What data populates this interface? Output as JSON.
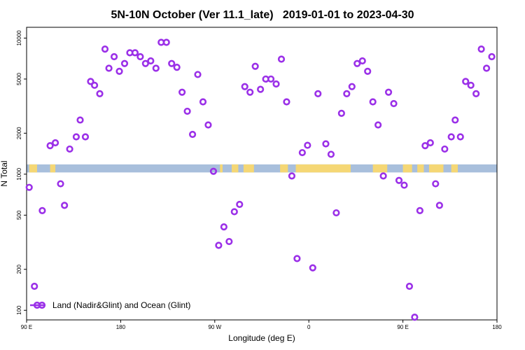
{
  "chart_data": {
    "type": "scatter",
    "title": "5N-10N October (Ver 11.1_late)   2019-01-01 to 2023-04-30",
    "xlabel": "Longitude (deg E)",
    "ylabel": "N Total",
    "y_scale": "log",
    "xlim": [
      90,
      450
    ],
    "ylim": [
      85,
      12000
    ],
    "x_ticks": [
      {
        "value": 90,
        "label": "90 E"
      },
      {
        "value": 162,
        "label": "180"
      },
      {
        "value": 234,
        "label": "90 W"
      },
      {
        "value": 306,
        "label": "0"
      },
      {
        "value": 378,
        "label": "90 E"
      },
      {
        "value": 450,
        "label": "180"
      }
    ],
    "y_ticks": [
      {
        "value": 100,
        "label": "100"
      },
      {
        "value": 200,
        "label": "200"
      },
      {
        "value": 500,
        "label": "500"
      },
      {
        "value": 1000,
        "label": "1000"
      },
      {
        "value": 2000,
        "label": "2000"
      },
      {
        "value": 5000,
        "label": "5000"
      },
      {
        "value": 10000,
        "label": "10000"
      }
    ],
    "grid": false,
    "legend_position": "bottom-left",
    "series": [
      {
        "name": "Land (Nadir&Glint) and Ocean (Glint)",
        "color": "#9b30e8",
        "marker": "open-circle",
        "points": [
          [
            92,
            800
          ],
          [
            96,
            150
          ],
          [
            102,
            540
          ],
          [
            108,
            1620
          ],
          [
            112,
            1700
          ],
          [
            116,
            850
          ],
          [
            119,
            590
          ],
          [
            123,
            1530
          ],
          [
            128,
            1880
          ],
          [
            131,
            2500
          ],
          [
            135,
            1880
          ],
          [
            139,
            4800
          ],
          [
            142,
            4500
          ],
          [
            146,
            3900
          ],
          [
            150,
            8300
          ],
          [
            153,
            6000
          ],
          [
            157,
            7300
          ],
          [
            161,
            5700
          ],
          [
            165,
            6500
          ],
          [
            169,
            7800
          ],
          [
            173,
            7800
          ],
          [
            177,
            7300
          ],
          [
            181,
            6500
          ],
          [
            185,
            6800
          ],
          [
            189,
            6000
          ],
          [
            193,
            9300
          ],
          [
            197,
            9300
          ],
          [
            201,
            6500
          ],
          [
            205,
            6100
          ],
          [
            209,
            4000
          ],
          [
            213,
            2900
          ],
          [
            217,
            1960
          ],
          [
            221,
            5400
          ],
          [
            225,
            3400
          ],
          [
            229,
            2300
          ],
          [
            233,
            1050
          ],
          [
            237,
            300
          ],
          [
            241,
            410
          ],
          [
            245,
            320
          ],
          [
            249,
            530
          ],
          [
            253,
            600
          ],
          [
            257,
            4400
          ],
          [
            261,
            4000
          ],
          [
            265,
            6200
          ],
          [
            269,
            4200
          ],
          [
            273,
            5000
          ],
          [
            277,
            5000
          ],
          [
            281,
            4600
          ],
          [
            285,
            7000
          ],
          [
            289,
            3400
          ],
          [
            293,
            970
          ],
          [
            297,
            240
          ],
          [
            301,
            1440
          ],
          [
            305,
            1630
          ],
          [
            309,
            205
          ],
          [
            313,
            3900
          ],
          [
            319,
            1670
          ],
          [
            323,
            1400
          ],
          [
            327,
            520
          ],
          [
            331,
            2800
          ],
          [
            335,
            3900
          ],
          [
            339,
            4400
          ],
          [
            343,
            6500
          ],
          [
            347,
            6800
          ],
          [
            351,
            5700
          ],
          [
            355,
            3400
          ],
          [
            359,
            2300
          ],
          [
            363,
            970
          ],
          [
            367,
            4000
          ],
          [
            371,
            3300
          ],
          [
            375,
            900
          ],
          [
            379,
            830
          ],
          [
            383,
            150
          ],
          [
            387,
            89
          ],
          [
            391,
            540
          ],
          [
            395,
            1620
          ],
          [
            399,
            1700
          ],
          [
            403,
            850
          ],
          [
            406,
            590
          ],
          [
            410,
            1530
          ],
          [
            415,
            1880
          ],
          [
            418,
            2500
          ],
          [
            422,
            1880
          ],
          [
            426,
            4800
          ],
          [
            430,
            4500
          ],
          [
            434,
            3900
          ],
          [
            438,
            8300
          ],
          [
            442,
            6000
          ],
          [
            446,
            7300
          ]
        ]
      }
    ],
    "legend": {
      "label": "Land (Nadir&Glint) and Ocean (Glint)"
    },
    "map_band": {
      "y_value_low": 1030,
      "y_value_high": 1180,
      "ocean_color": "#a8bfdc",
      "land_color": "#f5d775",
      "land_spans": [
        [
          92,
          98
        ],
        [
          108,
          112
        ],
        [
          238,
          240
        ],
        [
          247,
          252
        ],
        [
          256,
          264
        ],
        [
          284,
          290
        ],
        [
          296,
          338
        ],
        [
          355,
          366
        ],
        [
          378,
          385
        ],
        [
          389,
          394
        ],
        [
          398,
          409
        ],
        [
          415,
          420
        ]
      ]
    }
  }
}
